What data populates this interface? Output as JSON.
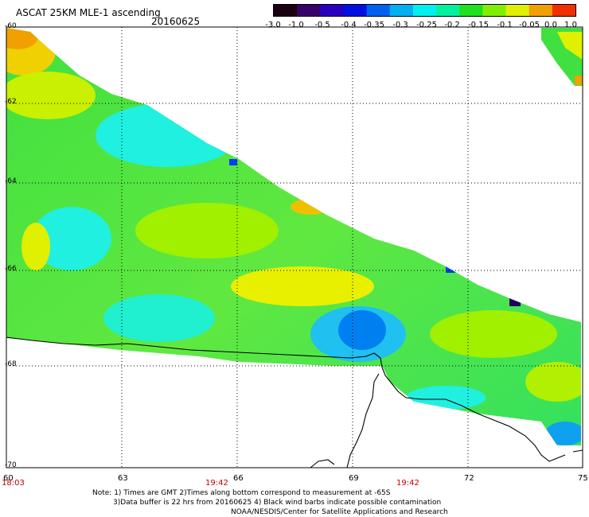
{
  "header": {
    "title": "ASCAT 25KM MLE-1 ascending",
    "date": "20160625"
  },
  "colorbar": {
    "labels": [
      "-3.0",
      "-1.0",
      "-0.5",
      "-0.4",
      "-0.35",
      "-0.3",
      "-0.25",
      "-0.2",
      "-0.15",
      "-0.1",
      "-0.05",
      "0.0",
      "1.0"
    ],
    "colors": [
      "#1a0010",
      "#3a006a",
      "#2a00c0",
      "#0010e0",
      "#0060f0",
      "#00b0f0",
      "#00f0f0",
      "#00f0a0",
      "#20e020",
      "#80f000",
      "#e0f000",
      "#f0a000",
      "#f03000"
    ]
  },
  "map": {
    "lat_labels": [
      "-60",
      "-62",
      "-64",
      "-66",
      "-68",
      "-70"
    ],
    "lon_labels": [
      "60",
      "63",
      "66",
      "69",
      "72",
      "75"
    ],
    "time_labels": [
      "18:03",
      "19:42",
      "19:42"
    ]
  },
  "footer": {
    "note1": "Note: 1) Times are GMT 2)Times along bottom correspond to measurement at -65S",
    "note2": "3)Data buffer is 22 hrs from 20160625 4) Black wind barbs indicate possible contamination",
    "credit": "NOAA/NESDIS/Center for Satellite Applications and Research"
  }
}
